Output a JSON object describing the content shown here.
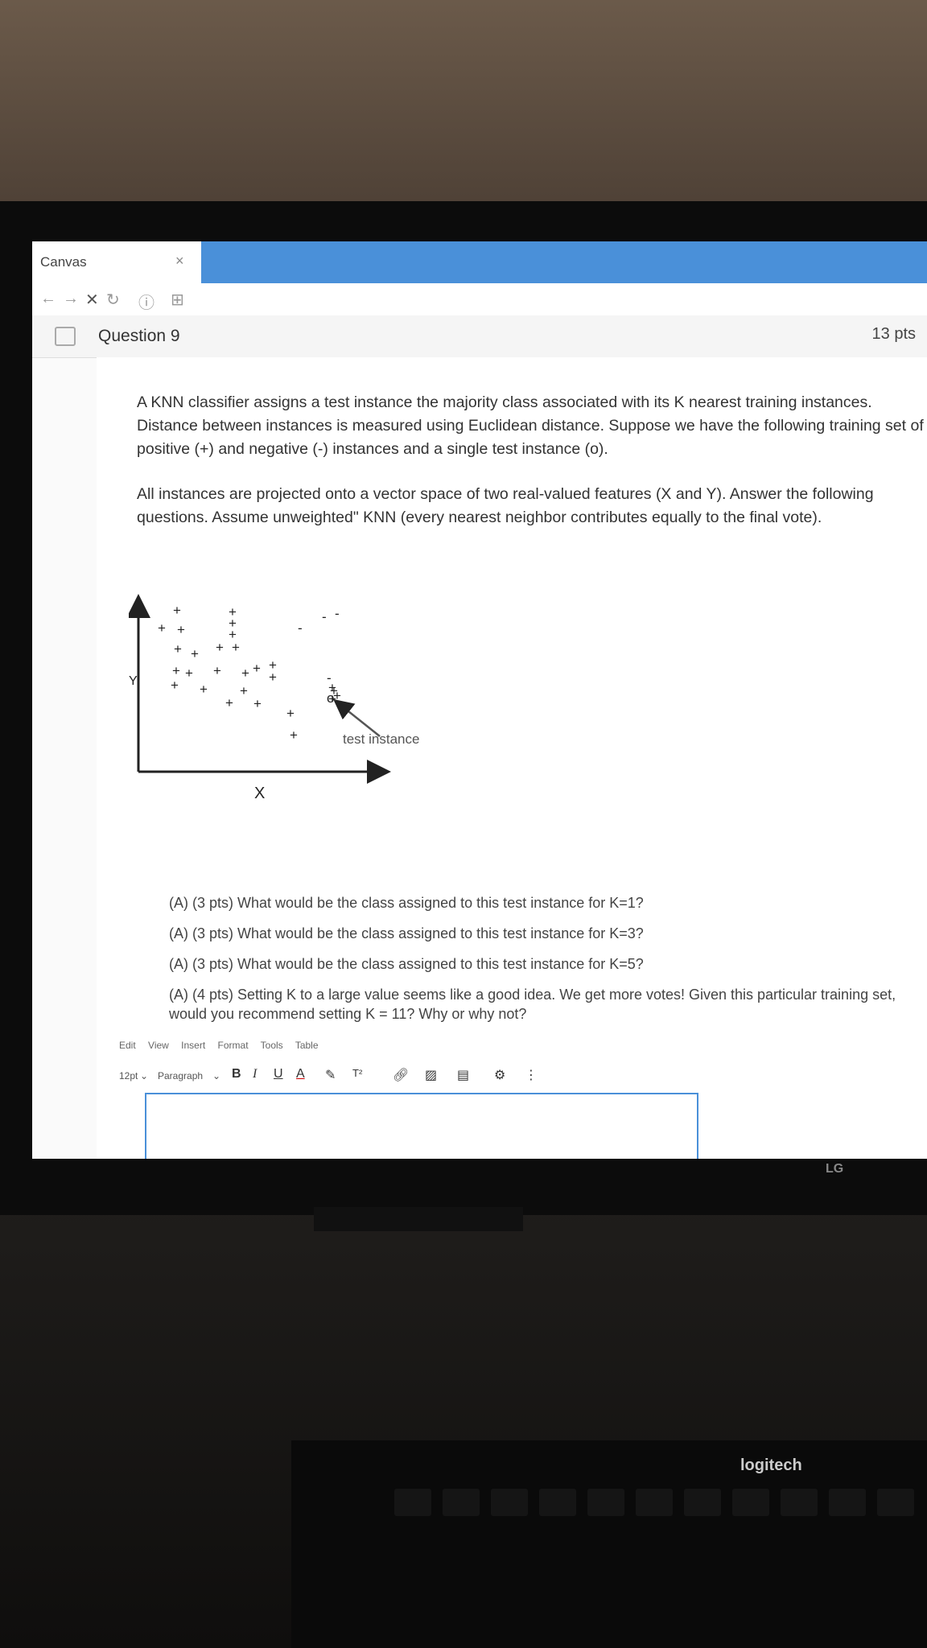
{
  "browser": {
    "tab_title": "Canvas",
    "tab_close": "×"
  },
  "nav": {
    "back": "←",
    "forward": "→",
    "stop": "✕",
    "refresh": "↻",
    "info": "ⓘ",
    "doc": "⊞"
  },
  "question": {
    "title": "Question 9",
    "points": "13 pts",
    "para1": "A KNN classifier assigns a test instance the majority class associated with its K nearest training instances. Distance between instances is measured using Euclidean distance. Suppose we have the following training set of positive (+) and negative (-) instances and a single test instance (o).",
    "para2": "All instances are projected onto a vector space of two real-valued features (X and Y). Answer the following questions. Assume unweighted\" KNN (every nearest neighbor contributes equally to the final vote).",
    "sub_a1": "(A) (3 pts) What would be the class assigned to this test instance for K=1?",
    "sub_a2": "(A) (3 pts) What would be the class assigned to this test instance for K=3?",
    "sub_a3": "(A) (3 pts) What would be the class assigned to this test instance for K=5?",
    "sub_a4": "(A) (4 pts) Setting K to a large value seems like a good idea. We get more votes! Given this particular training set, would you recommend setting K = 11? Why or why not?"
  },
  "figure": {
    "x_label": "X",
    "y_label": "Y",
    "test_label": "test instance",
    "positive_glyph": "+",
    "negative_glyph": "-",
    "test_glyph": "o"
  },
  "editor": {
    "menu": [
      "Edit",
      "View",
      "Insert",
      "Format",
      "Tools",
      "Table"
    ],
    "font_size": "12pt",
    "block_format": "Paragraph"
  },
  "monitor_brand": "LG",
  "keyboard_brand": "logitech"
}
